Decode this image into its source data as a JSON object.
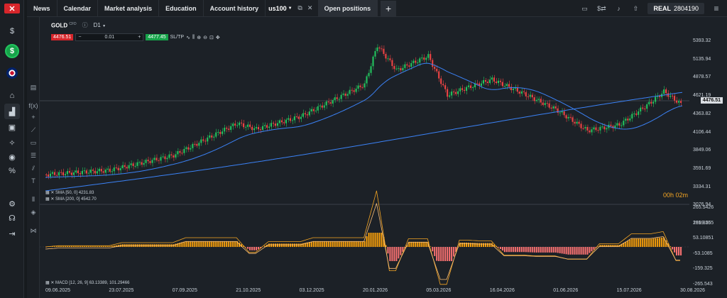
{
  "topbar": {
    "tabs": [
      "News",
      "Calendar",
      "Market analysis",
      "Education",
      "Account history"
    ],
    "instrument_tab": "us100",
    "open_positions": "Open positions",
    "plus": "+",
    "account_type": "REAL",
    "account_number": "2804190"
  },
  "instrument": {
    "symbol": "GOLD",
    "tag": "CFD",
    "timeframe": "D1",
    "sell_price": "4476.51",
    "buy_price": "4477.45",
    "volume": "0.01",
    "minus": "−",
    "plus": "+",
    "sltp": "SL/TP"
  },
  "indicators": {
    "sma50": "SMA [50, 0] 4231.83",
    "sma200": "SMA [200, 0] 4542.70",
    "macd": "MACD [12, 26, 9] 63.13389, 101.29466"
  },
  "current_price": "4476.51",
  "timer": "00h 02m",
  "price_axis": [
    "5393.32",
    "5135.94",
    "4878.57",
    "4621.19",
    "4363.82",
    "4106.44",
    "3849.06",
    "3591.69",
    "3334.31",
    "3076.94",
    "2819.56"
  ],
  "macd_axis": [
    "265.5426",
    "159.3255",
    "53.10851",
    "-53.1085",
    "-159.325",
    "-265.543"
  ],
  "date_axis": [
    "09.06.2025",
    "23.07.2025",
    "07.09.2025",
    "21.10.2025",
    "03.12.2025",
    "20.01.2026",
    "05.03.2026",
    "16.04.2026",
    "01.06.2026",
    "15.07.2026",
    "30.08.2026"
  ],
  "colors": {
    "up": "#22c55e",
    "down": "#ef4444",
    "sma": "#3b82f6",
    "macd_hist": "#f59e0b",
    "macd_neg": "#f87171",
    "signal": "#f5a623"
  }
}
